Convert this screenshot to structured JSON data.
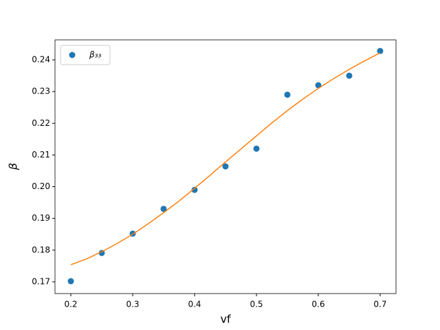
{
  "chart_data": {
    "type": "scatter",
    "x_label": "vf",
    "y_label": "β",
    "xlim": [
      0.1744,
      0.7256
    ],
    "ylim": [
      0.1663,
      0.2463
    ],
    "xticks": [
      0.2,
      0.3,
      0.4,
      0.5,
      0.6,
      0.7
    ],
    "yticks": [
      0.17,
      0.18,
      0.19,
      {
        "value": 0.2,
        "label": "0.20"
      },
      0.21,
      0.22,
      0.23,
      0.24
    ],
    "legend": "upper left",
    "series": [
      {
        "name": "β₃₃",
        "type": "scatter",
        "color": "#1f77b4",
        "x": [
          0.2,
          0.25,
          0.3,
          0.35,
          0.4,
          0.45,
          0.5,
          0.55,
          0.6,
          0.65,
          0.7
        ],
        "values": [
          0.1702,
          0.1791,
          0.1852,
          0.193,
          0.199,
          0.2064,
          0.212,
          0.229,
          0.232,
          0.235,
          0.2428
        ]
      },
      {
        "type": "line",
        "color": "#ff7f0e",
        "x": [
          0.2,
          0.225,
          0.25,
          0.275,
          0.3,
          0.325,
          0.35,
          0.375,
          0.4,
          0.425,
          0.45,
          0.475,
          0.5,
          0.525,
          0.55,
          0.575,
          0.6,
          0.625,
          0.65,
          0.675,
          0.7
        ],
        "values": [
          0.1754,
          0.1772,
          0.1795,
          0.1821,
          0.185,
          0.1883,
          0.1918,
          0.1955,
          0.1995,
          0.2036,
          0.2078,
          0.2119,
          0.216,
          0.2201,
          0.224,
          0.2276,
          0.231,
          0.2341,
          0.237,
          0.2397,
          0.2422
        ]
      }
    ]
  }
}
